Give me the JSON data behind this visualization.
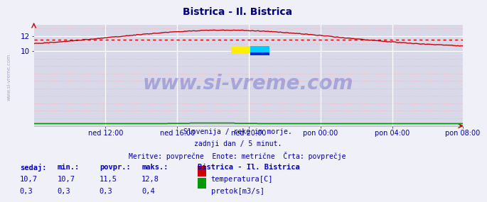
{
  "title": "Bistrica - Il. Bistrica",
  "title_color": "#000080",
  "bg_color": "#f0f0f8",
  "plot_bg_color": "#d8d8e8",
  "grid_white_color": "#ffffff",
  "grid_pink_color": "#ffaaaa",
  "xlabel_ticks": [
    "ned 12:00",
    "ned 16:00",
    "ned 20:00",
    "pon 00:00",
    "pon 04:00",
    "pon 08:00"
  ],
  "ylim": [
    0,
    13.5
  ],
  "xlim": [
    0,
    287
  ],
  "tick_x_positions": [
    48,
    96,
    144,
    192,
    240,
    287
  ],
  "temp_avg": 11.5,
  "temp_line_color": "#cc0000",
  "flow_line_color": "#009900",
  "avg_line_color": "#cc0000",
  "watermark": "www.si-vreme.com",
  "watermark_color": "#3333bb",
  "watermark_alpha": 0.3,
  "subtitle1": "Slovenija / reke in morje.",
  "subtitle2": "zadnji dan / 5 minut.",
  "subtitle3": "Meritve: povprečne  Enote: metrične  Črta: povprečje",
  "subtitle_color": "#0000aa",
  "table_label_color": "#0000cc",
  "table_headers": [
    "sedaj:",
    "min.:",
    "povpr.:",
    "maks.:"
  ],
  "table_temp": [
    "10,7",
    "10,7",
    "11,5",
    "12,8"
  ],
  "table_flow": [
    "0,3",
    "0,3",
    "0,3",
    "0,4"
  ],
  "legend_title": "Bistrica - Il. Bistrica",
  "legend_temp": "temperatura[C]",
  "legend_flow": "pretok[m3/s]",
  "tick_color": "#0000aa",
  "temp_rect_color": "#cc0000",
  "flow_rect_color": "#009900",
  "sidebar_text": "www.si-vreme.com",
  "sidebar_color": "#8888bb"
}
